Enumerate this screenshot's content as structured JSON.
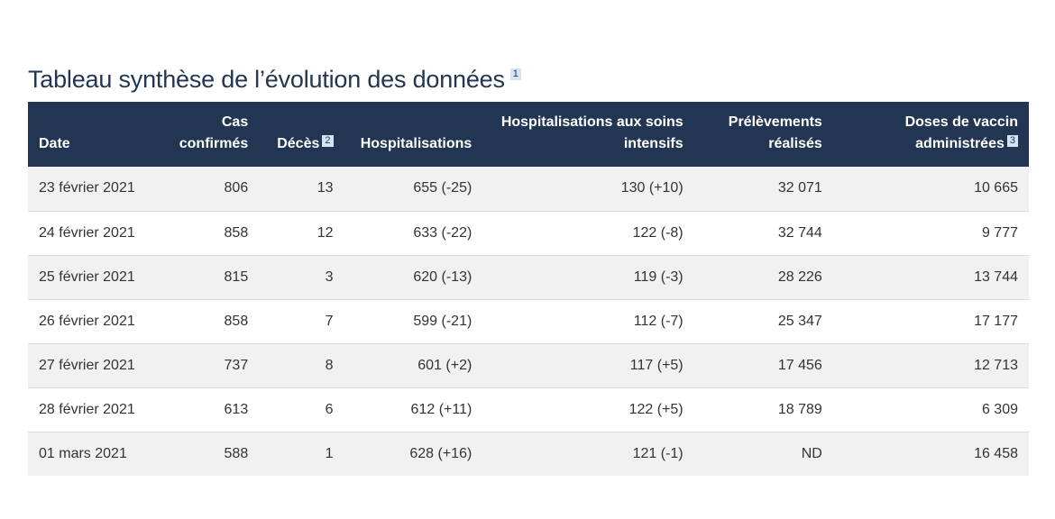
{
  "title": "Tableau synthèse de l’évolution des données",
  "title_footnote": "1",
  "table": {
    "headers": {
      "date": "Date",
      "cas_line1": "Cas",
      "cas_line2": "confirmés",
      "deces": "Décès",
      "deces_footnote": "2",
      "hosp": "Hospitalisations",
      "si_line1": "Hospitalisations aux soins",
      "si_line2": "intensifs",
      "prel_line1": "Prélèvements",
      "prel_line2": "réalisés",
      "doses_line1": "Doses de vaccin",
      "doses_line2": "administrées",
      "doses_footnote": "3"
    },
    "rows": [
      {
        "date": "23 février 2021",
        "cas": "806",
        "deces": "13",
        "hosp": "655 (-25)",
        "si": "130 (+10)",
        "prel": "32 071",
        "doses": "10 665"
      },
      {
        "date": "24 février 2021",
        "cas": "858",
        "deces": "12",
        "hosp": "633 (-22)",
        "si": "122 (-8)",
        "prel": "32 744",
        "doses": "9 777"
      },
      {
        "date": "25 février 2021",
        "cas": "815",
        "deces": "3",
        "hosp": "620 (-13)",
        "si": "119 (-3)",
        "prel": "28 226",
        "doses": "13 744"
      },
      {
        "date": "26 février 2021",
        "cas": "858",
        "deces": "7",
        "hosp": "599 (-21)",
        "si": "112 (-7)",
        "prel": "25 347",
        "doses": "17 177"
      },
      {
        "date": "27 février 2021",
        "cas": "737",
        "deces": "8",
        "hosp": "601 (+2)",
        "si": "117 (+5)",
        "prel": "17 456",
        "doses": "12 713"
      },
      {
        "date": "28 février 2021",
        "cas": "613",
        "deces": "6",
        "hosp": "612 (+11)",
        "si": "122 (+5)",
        "prel": "18 789",
        "doses": "6 309"
      },
      {
        "date": "01 mars 2021",
        "cas": "588",
        "deces": "1",
        "hosp": "628 (+16)",
        "si": "121 (-1)",
        "prel": "ND",
        "doses": "16 458"
      }
    ]
  },
  "colors": {
    "header_bg": "#223654",
    "title": "#223654",
    "footnote_bg": "#d5e4f4",
    "row_alt": "#f1f1f1"
  }
}
